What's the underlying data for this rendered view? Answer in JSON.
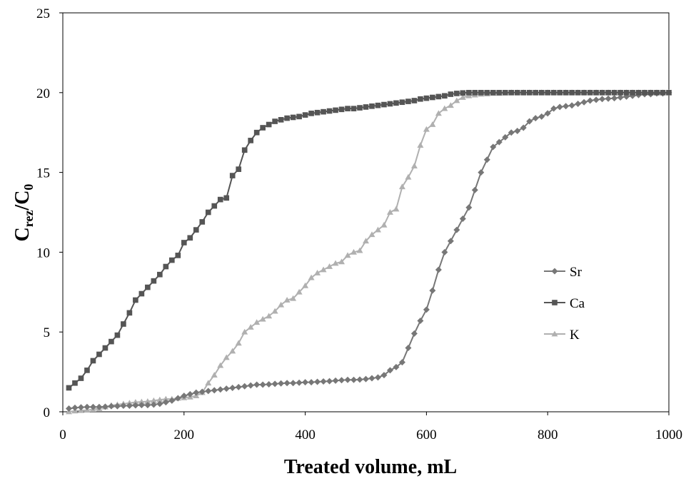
{
  "chart_data": {
    "type": "line",
    "title": "",
    "xlabel": "Treated volume, mL",
    "ylabel": {
      "main": "C",
      "sub1": "rez",
      "slash": "/C",
      "sub2": "0"
    },
    "xlim": [
      0,
      1000
    ],
    "ylim": [
      0,
      25
    ],
    "xticks": [
      0,
      200,
      400,
      600,
      800,
      1000
    ],
    "yticks": [
      0,
      5,
      10,
      15,
      20,
      25
    ],
    "grid": false,
    "legend_position": "right",
    "series": [
      {
        "name": "Sr",
        "color": "#777777",
        "marker": "diamond",
        "points": [
          [
            10,
            0.2
          ],
          [
            20,
            0.25
          ],
          [
            30,
            0.28
          ],
          [
            40,
            0.3
          ],
          [
            50,
            0.3
          ],
          [
            60,
            0.3
          ],
          [
            70,
            0.32
          ],
          [
            80,
            0.35
          ],
          [
            90,
            0.35
          ],
          [
            100,
            0.38
          ],
          [
            110,
            0.38
          ],
          [
            120,
            0.4
          ],
          [
            130,
            0.42
          ],
          [
            140,
            0.42
          ],
          [
            150,
            0.45
          ],
          [
            160,
            0.5
          ],
          [
            170,
            0.6
          ],
          [
            180,
            0.7
          ],
          [
            190,
            0.85
          ],
          [
            200,
            1.0
          ],
          [
            210,
            1.1
          ],
          [
            220,
            1.2
          ],
          [
            230,
            1.25
          ],
          [
            240,
            1.3
          ],
          [
            250,
            1.35
          ],
          [
            260,
            1.4
          ],
          [
            270,
            1.45
          ],
          [
            280,
            1.5
          ],
          [
            290,
            1.55
          ],
          [
            300,
            1.6
          ],
          [
            310,
            1.65
          ],
          [
            320,
            1.7
          ],
          [
            330,
            1.7
          ],
          [
            340,
            1.72
          ],
          [
            350,
            1.75
          ],
          [
            360,
            1.78
          ],
          [
            370,
            1.8
          ],
          [
            380,
            1.8
          ],
          [
            390,
            1.82
          ],
          [
            400,
            1.85
          ],
          [
            410,
            1.85
          ],
          [
            420,
            1.88
          ],
          [
            430,
            1.9
          ],
          [
            440,
            1.92
          ],
          [
            450,
            1.95
          ],
          [
            460,
            1.98
          ],
          [
            470,
            2.0
          ],
          [
            480,
            2.0
          ],
          [
            490,
            2.02
          ],
          [
            500,
            2.05
          ],
          [
            510,
            2.1
          ],
          [
            520,
            2.15
          ],
          [
            530,
            2.3
          ],
          [
            540,
            2.6
          ],
          [
            550,
            2.8
          ],
          [
            560,
            3.1
          ],
          [
            570,
            4.0
          ],
          [
            580,
            4.9
          ],
          [
            590,
            5.7
          ],
          [
            600,
            6.4
          ],
          [
            610,
            7.6
          ],
          [
            620,
            8.9
          ],
          [
            630,
            10.0
          ],
          [
            640,
            10.7
          ],
          [
            650,
            11.4
          ],
          [
            660,
            12.1
          ],
          [
            670,
            12.8
          ],
          [
            680,
            13.9
          ],
          [
            690,
            15.0
          ],
          [
            700,
            15.8
          ],
          [
            710,
            16.6
          ],
          [
            720,
            16.9
          ],
          [
            730,
            17.2
          ],
          [
            740,
            17.5
          ],
          [
            750,
            17.6
          ],
          [
            760,
            17.8
          ],
          [
            770,
            18.2
          ],
          [
            780,
            18.4
          ],
          [
            790,
            18.5
          ],
          [
            800,
            18.7
          ],
          [
            810,
            19.0
          ],
          [
            820,
            19.1
          ],
          [
            830,
            19.15
          ],
          [
            840,
            19.2
          ],
          [
            850,
            19.3
          ],
          [
            860,
            19.4
          ],
          [
            870,
            19.5
          ],
          [
            880,
            19.55
          ],
          [
            890,
            19.6
          ],
          [
            900,
            19.62
          ],
          [
            910,
            19.65
          ],
          [
            920,
            19.7
          ],
          [
            930,
            19.75
          ],
          [
            940,
            19.8
          ],
          [
            950,
            19.85
          ],
          [
            960,
            19.9
          ],
          [
            970,
            19.9
          ],
          [
            980,
            19.95
          ],
          [
            990,
            19.95
          ],
          [
            1000,
            20.0
          ]
        ]
      },
      {
        "name": "Ca",
        "color": "#555555",
        "marker": "square",
        "points": [
          [
            10,
            1.5
          ],
          [
            20,
            1.8
          ],
          [
            30,
            2.1
          ],
          [
            40,
            2.6
          ],
          [
            50,
            3.2
          ],
          [
            60,
            3.6
          ],
          [
            70,
            4.0
          ],
          [
            80,
            4.4
          ],
          [
            90,
            4.8
          ],
          [
            100,
            5.5
          ],
          [
            110,
            6.2
          ],
          [
            120,
            7.0
          ],
          [
            130,
            7.4
          ],
          [
            140,
            7.8
          ],
          [
            150,
            8.2
          ],
          [
            160,
            8.6
          ],
          [
            170,
            9.1
          ],
          [
            180,
            9.5
          ],
          [
            190,
            9.8
          ],
          [
            200,
            10.6
          ],
          [
            210,
            10.9
          ],
          [
            220,
            11.4
          ],
          [
            230,
            11.9
          ],
          [
            240,
            12.5
          ],
          [
            250,
            12.9
          ],
          [
            260,
            13.3
          ],
          [
            270,
            13.4
          ],
          [
            280,
            14.8
          ],
          [
            290,
            15.2
          ],
          [
            300,
            16.4
          ],
          [
            310,
            17.0
          ],
          [
            320,
            17.5
          ],
          [
            330,
            17.8
          ],
          [
            340,
            18.0
          ],
          [
            350,
            18.2
          ],
          [
            360,
            18.3
          ],
          [
            370,
            18.4
          ],
          [
            380,
            18.45
          ],
          [
            390,
            18.5
          ],
          [
            400,
            18.6
          ],
          [
            410,
            18.7
          ],
          [
            420,
            18.75
          ],
          [
            430,
            18.8
          ],
          [
            440,
            18.85
          ],
          [
            450,
            18.9
          ],
          [
            460,
            18.95
          ],
          [
            470,
            19.0
          ],
          [
            480,
            19.0
          ],
          [
            490,
            19.05
          ],
          [
            500,
            19.1
          ],
          [
            510,
            19.15
          ],
          [
            520,
            19.2
          ],
          [
            530,
            19.25
          ],
          [
            540,
            19.3
          ],
          [
            550,
            19.35
          ],
          [
            560,
            19.4
          ],
          [
            570,
            19.45
          ],
          [
            580,
            19.5
          ],
          [
            590,
            19.6
          ],
          [
            600,
            19.65
          ],
          [
            610,
            19.7
          ],
          [
            620,
            19.75
          ],
          [
            630,
            19.8
          ],
          [
            640,
            19.9
          ],
          [
            650,
            19.95
          ],
          [
            660,
            19.98
          ],
          [
            670,
            20.0
          ],
          [
            680,
            20.0
          ],
          [
            690,
            20.0
          ],
          [
            700,
            20.0
          ],
          [
            710,
            20.0
          ],
          [
            720,
            20.0
          ],
          [
            730,
            20.0
          ],
          [
            740,
            20.0
          ],
          [
            750,
            20.0
          ],
          [
            760,
            20.0
          ],
          [
            770,
            20.0
          ],
          [
            780,
            20.0
          ],
          [
            790,
            20.0
          ],
          [
            800,
            20.0
          ],
          [
            810,
            20.0
          ],
          [
            820,
            20.0
          ],
          [
            830,
            20.0
          ],
          [
            840,
            20.0
          ],
          [
            850,
            20.0
          ],
          [
            860,
            20.0
          ],
          [
            870,
            20.0
          ],
          [
            880,
            20.0
          ],
          [
            890,
            20.0
          ],
          [
            900,
            20.0
          ],
          [
            910,
            20.0
          ],
          [
            920,
            20.0
          ],
          [
            930,
            20.0
          ],
          [
            940,
            20.0
          ],
          [
            950,
            20.0
          ],
          [
            960,
            20.0
          ],
          [
            970,
            20.0
          ],
          [
            980,
            20.0
          ],
          [
            990,
            20.0
          ],
          [
            1000,
            20.0
          ]
        ]
      },
      {
        "name": "K",
        "color": "#b0b0b0",
        "marker": "triangle",
        "points": [
          [
            10,
            0.0
          ],
          [
            20,
            0.05
          ],
          [
            30,
            0.08
          ],
          [
            40,
            0.1
          ],
          [
            50,
            0.15
          ],
          [
            60,
            0.2
          ],
          [
            70,
            0.3
          ],
          [
            80,
            0.4
          ],
          [
            90,
            0.45
          ],
          [
            100,
            0.5
          ],
          [
            110,
            0.55
          ],
          [
            120,
            0.6
          ],
          [
            130,
            0.62
          ],
          [
            140,
            0.65
          ],
          [
            150,
            0.7
          ],
          [
            160,
            0.75
          ],
          [
            170,
            0.8
          ],
          [
            180,
            0.8
          ],
          [
            190,
            0.85
          ],
          [
            200,
            0.88
          ],
          [
            210,
            0.92
          ],
          [
            220,
            1.0
          ],
          [
            230,
            1.2
          ],
          [
            240,
            1.8
          ],
          [
            250,
            2.3
          ],
          [
            260,
            2.9
          ],
          [
            270,
            3.4
          ],
          [
            280,
            3.8
          ],
          [
            290,
            4.3
          ],
          [
            300,
            5.0
          ],
          [
            310,
            5.3
          ],
          [
            320,
            5.6
          ],
          [
            330,
            5.8
          ],
          [
            340,
            6.0
          ],
          [
            350,
            6.3
          ],
          [
            360,
            6.7
          ],
          [
            370,
            7.0
          ],
          [
            380,
            7.1
          ],
          [
            390,
            7.5
          ],
          [
            400,
            7.9
          ],
          [
            410,
            8.4
          ],
          [
            420,
            8.7
          ],
          [
            430,
            8.9
          ],
          [
            440,
            9.1
          ],
          [
            450,
            9.3
          ],
          [
            460,
            9.4
          ],
          [
            470,
            9.8
          ],
          [
            480,
            10.0
          ],
          [
            490,
            10.1
          ],
          [
            500,
            10.7
          ],
          [
            510,
            11.1
          ],
          [
            520,
            11.4
          ],
          [
            530,
            11.7
          ],
          [
            540,
            12.5
          ],
          [
            550,
            12.7
          ],
          [
            560,
            14.1
          ],
          [
            570,
            14.7
          ],
          [
            580,
            15.4
          ],
          [
            590,
            16.7
          ],
          [
            600,
            17.7
          ],
          [
            610,
            18.0
          ],
          [
            620,
            18.7
          ],
          [
            630,
            19.0
          ],
          [
            640,
            19.2
          ],
          [
            650,
            19.5
          ],
          [
            660,
            19.7
          ],
          [
            670,
            19.8
          ],
          [
            680,
            19.85
          ],
          [
            690,
            19.9
          ],
          [
            700,
            19.92
          ],
          [
            710,
            19.95
          ],
          [
            720,
            19.95
          ],
          [
            730,
            19.98
          ],
          [
            740,
            20.0
          ],
          [
            750,
            20.0
          ],
          [
            760,
            20.0
          ],
          [
            770,
            20.0
          ],
          [
            780,
            20.0
          ],
          [
            790,
            20.0
          ],
          [
            800,
            20.0
          ],
          [
            810,
            20.0
          ],
          [
            820,
            20.0
          ],
          [
            830,
            20.0
          ],
          [
            840,
            20.0
          ],
          [
            850,
            20.0
          ],
          [
            860,
            20.0
          ],
          [
            870,
            20.0
          ],
          [
            880,
            20.0
          ],
          [
            890,
            20.0
          ],
          [
            900,
            20.0
          ],
          [
            910,
            20.0
          ],
          [
            920,
            20.0
          ],
          [
            930,
            20.0
          ],
          [
            940,
            20.0
          ],
          [
            950,
            20.0
          ],
          [
            960,
            20.0
          ],
          [
            970,
            20.0
          ],
          [
            980,
            20.0
          ],
          [
            990,
            20.0
          ],
          [
            1000,
            20.0
          ]
        ]
      }
    ]
  }
}
